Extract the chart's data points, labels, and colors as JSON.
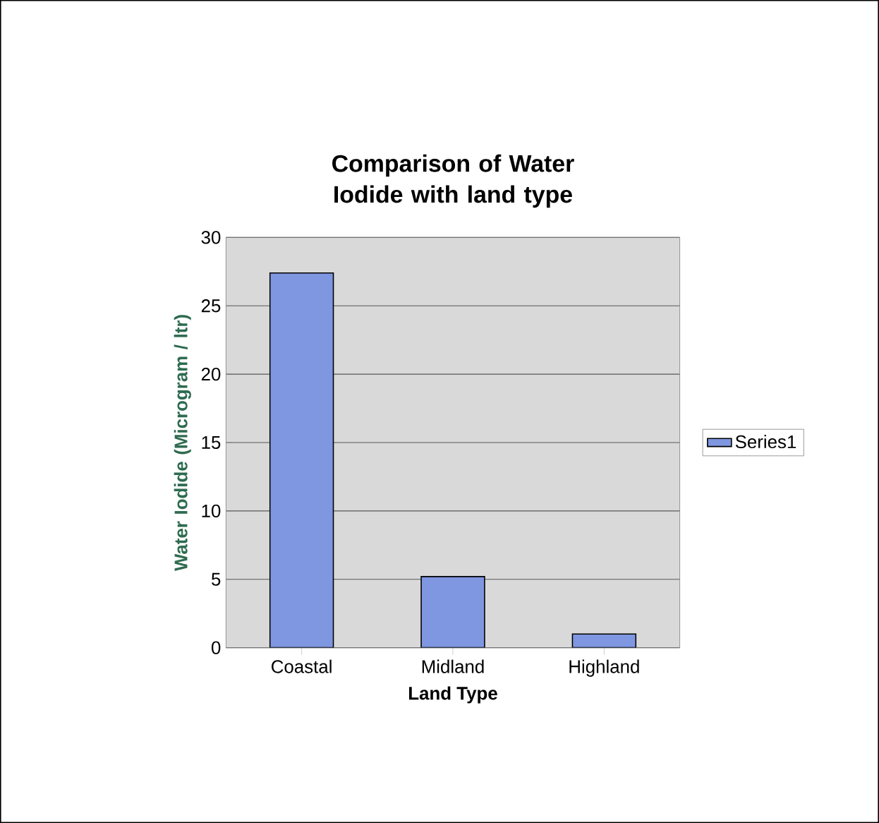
{
  "chart_data": {
    "type": "bar",
    "title": "Comparison of Water Iodide with land type",
    "xlabel": "Land Type",
    "ylabel": "Water Iodide (Microgram / ltr)",
    "categories": [
      "Coastal",
      "Midland",
      "Highland"
    ],
    "series": [
      {
        "name": "Series1",
        "color": "#7f96e0",
        "values": [
          27.4,
          5.2,
          1.0
        ]
      }
    ],
    "ylim": [
      0,
      30
    ],
    "yticks": [
      0,
      5,
      10,
      15,
      20,
      25,
      30
    ],
    "grid": "y",
    "legend": "right"
  }
}
